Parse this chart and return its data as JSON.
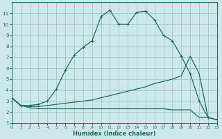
{
  "xlabel": "Humidex (Indice chaleur)",
  "xlim": [
    0,
    23
  ],
  "ylim": [
    1,
    12
  ],
  "yticks": [
    1,
    2,
    3,
    4,
    5,
    6,
    7,
    8,
    9,
    10,
    11
  ],
  "xticks": [
    0,
    1,
    2,
    3,
    4,
    5,
    6,
    7,
    8,
    9,
    10,
    11,
    12,
    13,
    14,
    15,
    16,
    17,
    18,
    19,
    20,
    21,
    22,
    23
  ],
  "bg_color": "#cce8e8",
  "line_color": "#1a6b6b",
  "grid_color": "#9bbfbf",
  "line1_x": [
    0,
    1,
    2,
    3,
    4,
    5,
    6,
    7,
    8,
    9,
    10,
    11,
    12,
    13,
    14,
    15,
    16,
    17,
    18,
    19,
    20,
    21,
    22,
    23
  ],
  "line1_y": [
    3.3,
    2.6,
    2.6,
    2.7,
    3.0,
    4.1,
    5.8,
    7.2,
    7.9,
    8.5,
    10.7,
    11.3,
    10.0,
    10.0,
    11.1,
    11.2,
    10.4,
    9.0,
    8.5,
    7.1,
    5.5,
    3.0,
    1.5,
    1.3
  ],
  "line2_x": [
    0,
    1,
    2,
    3,
    4,
    5,
    6,
    7,
    8,
    9,
    10,
    11,
    12,
    13,
    14,
    15,
    16,
    17,
    18,
    19,
    20,
    21,
    22,
    23
  ],
  "line2_y": [
    3.3,
    2.6,
    2.5,
    2.5,
    2.6,
    2.7,
    2.8,
    2.9,
    3.0,
    3.1,
    3.3,
    3.5,
    3.7,
    3.9,
    4.1,
    4.3,
    4.6,
    4.8,
    5.0,
    5.3,
    7.1,
    5.5,
    1.5,
    1.3
  ],
  "line3_x": [
    0,
    1,
    2,
    3,
    4,
    5,
    6,
    7,
    8,
    9,
    10,
    11,
    12,
    13,
    14,
    15,
    16,
    17,
    18,
    19,
    20,
    21,
    22,
    23
  ],
  "line3_y": [
    3.3,
    2.6,
    2.4,
    2.3,
    2.3,
    2.3,
    2.3,
    2.3,
    2.3,
    2.3,
    2.3,
    2.3,
    2.3,
    2.3,
    2.3,
    2.3,
    2.3,
    2.3,
    2.2,
    2.2,
    2.2,
    1.5,
    1.5,
    1.3
  ]
}
